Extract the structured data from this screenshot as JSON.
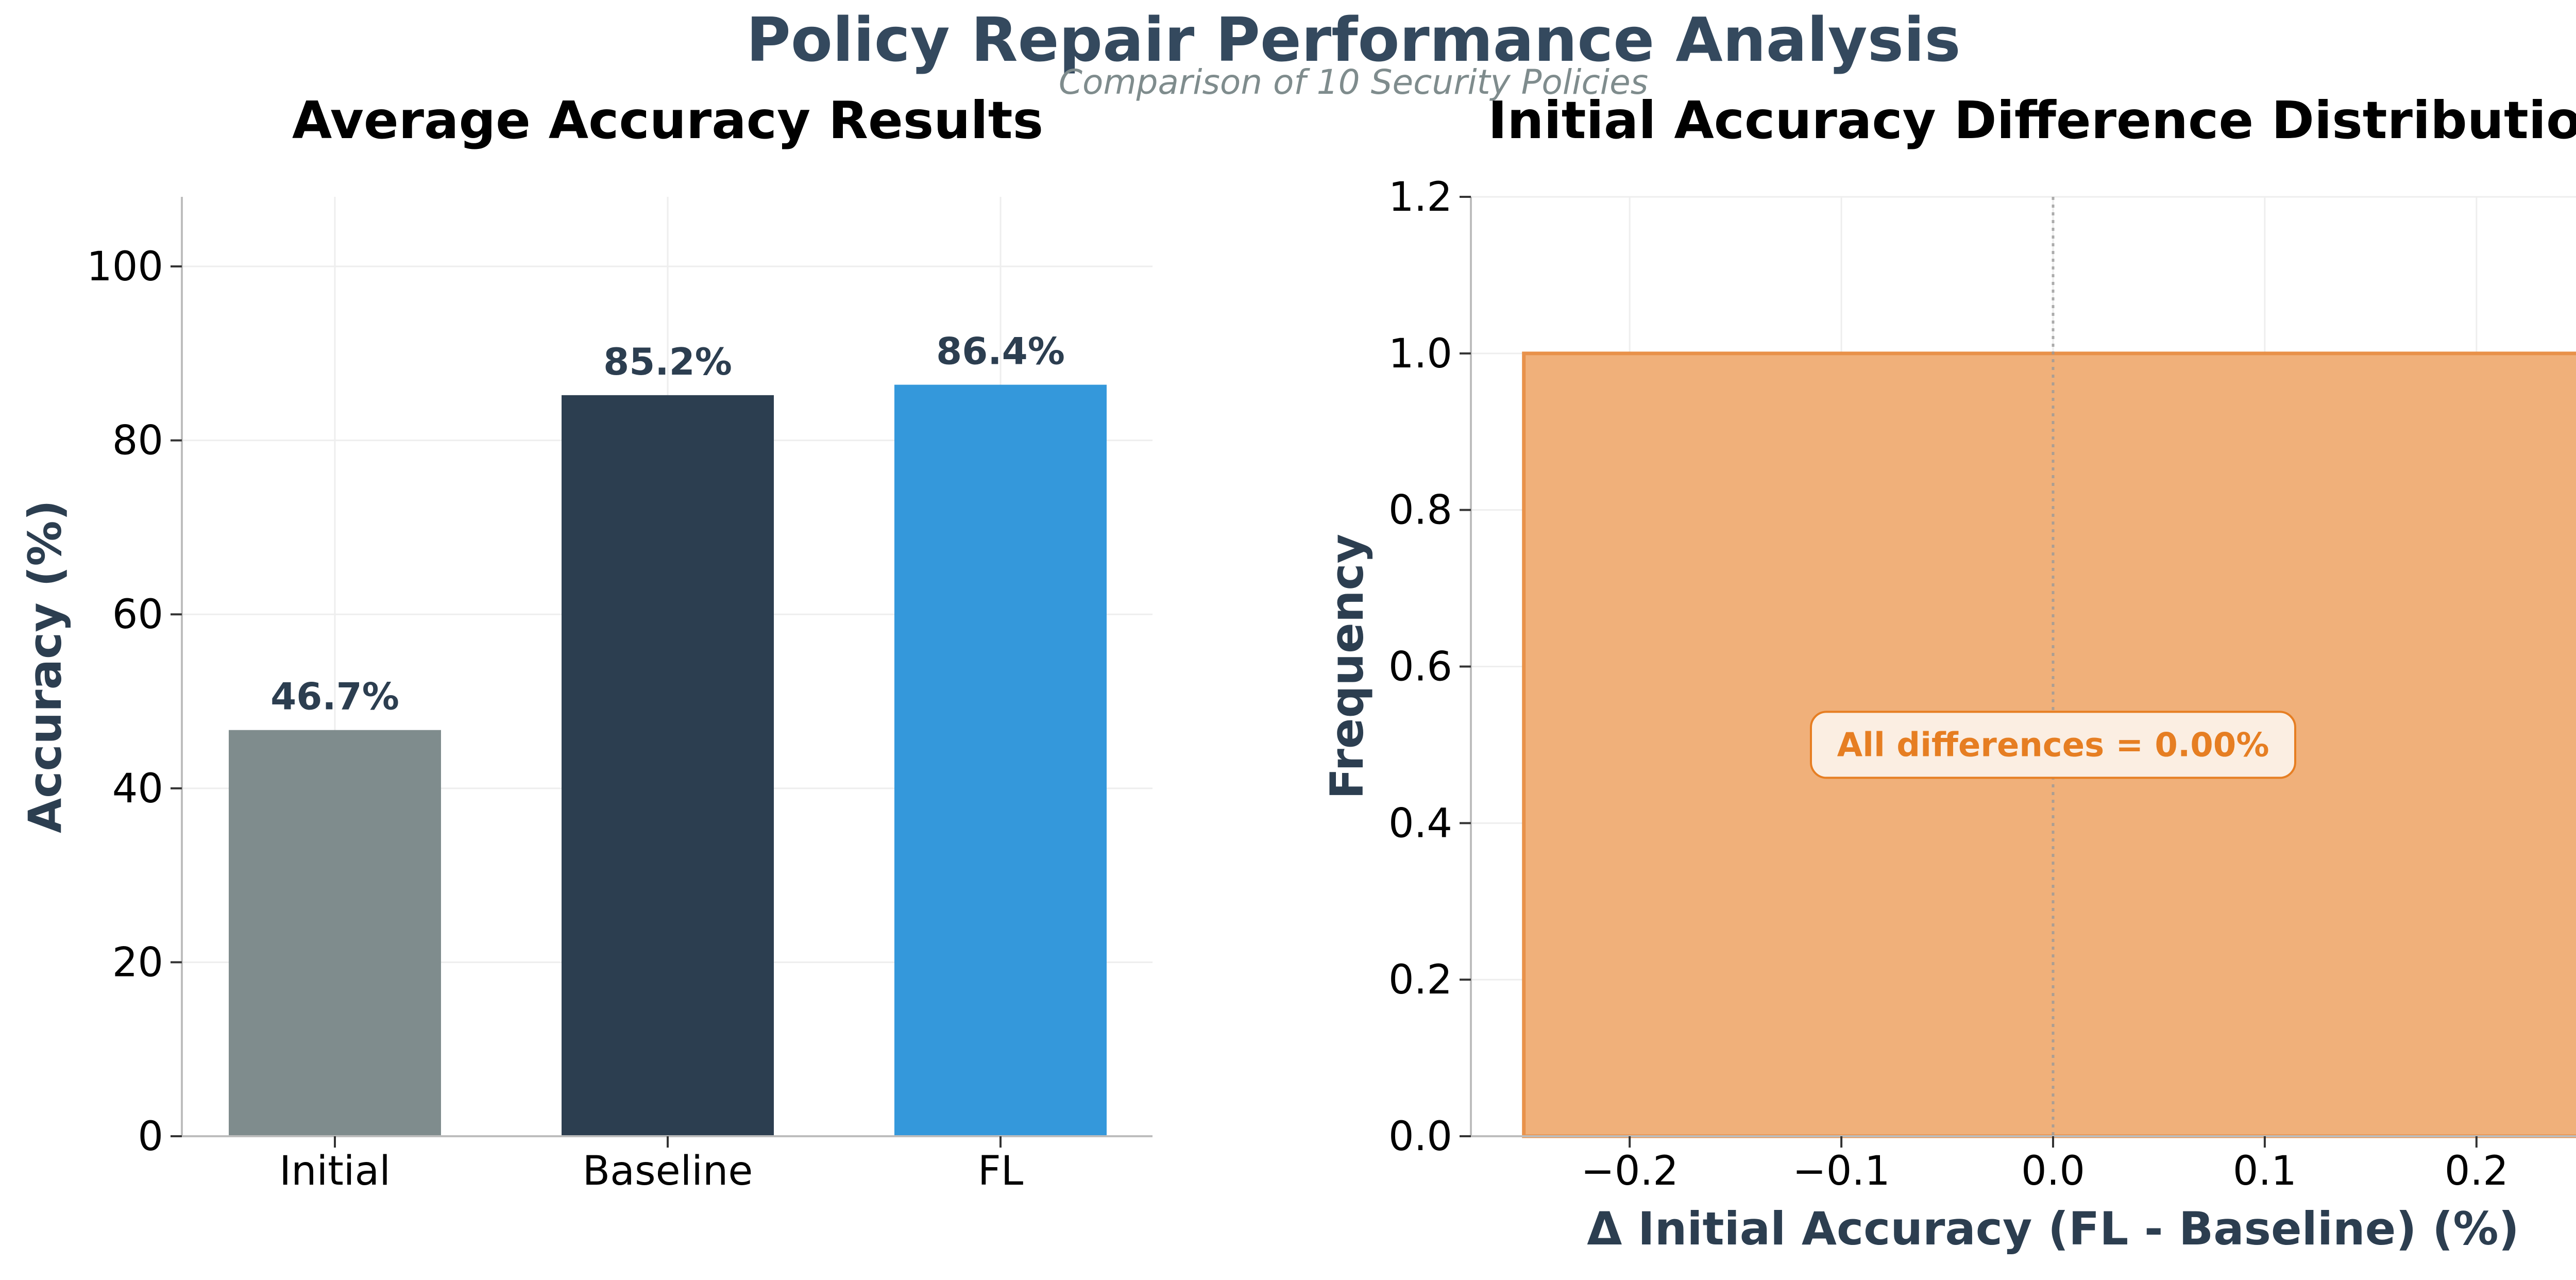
{
  "figure": {
    "title": "Policy Repair Performance Analysis",
    "subtitle": "Comparison of 10 Security Policies"
  },
  "chart_data": [
    {
      "type": "bar",
      "title": "Average Accuracy Results",
      "xlabel": "",
      "ylabel": "Accuracy (%)",
      "categories": [
        "Initial",
        "Baseline",
        "FL"
      ],
      "values": [
        46.7,
        85.2,
        86.4
      ],
      "data_labels": [
        "46.7%",
        "85.2%",
        "86.4%"
      ],
      "colors": [
        "#7f8c8d",
        "#2c3e50",
        "#3498db"
      ],
      "ylim": [
        0,
        108
      ],
      "yticks": [
        0,
        20,
        40,
        60,
        80,
        100
      ],
      "ytick_labels": [
        "0",
        "20",
        "40",
        "60",
        "80",
        "100"
      ],
      "grid": true
    },
    {
      "type": "bar",
      "subtype": "histogram",
      "title": "Initial Accuracy Difference Distribution",
      "xlabel": "Δ Initial Accuracy (FL - Baseline) (%)",
      "ylabel": "Frequency",
      "bins": [
        {
          "x0": -0.25,
          "x1": 0.25,
          "count": 1.0
        }
      ],
      "bar_color": "#f0b07a",
      "bar_edge_color": "#e8914a",
      "xlim": [
        -0.275,
        0.275
      ],
      "ylim": [
        0,
        1.2
      ],
      "xticks": [
        -0.2,
        -0.1,
        0.0,
        0.1,
        0.2
      ],
      "xtick_labels": [
        "−0.2",
        "−0.1",
        "0.0",
        "0.1",
        "0.2"
      ],
      "yticks": [
        0,
        0.2,
        0.4,
        0.6,
        0.8,
        1.0,
        1.2
      ],
      "ytick_labels": [
        "0.0",
        "0.2",
        "0.4",
        "0.6",
        "0.8",
        "1.0",
        "1.2"
      ],
      "reference_line_x": 0.0,
      "annotation": {
        "text": "All differences = 0.00%",
        "x": 0.0,
        "y": 0.5,
        "color": "#e67e22"
      },
      "grid": true
    }
  ]
}
